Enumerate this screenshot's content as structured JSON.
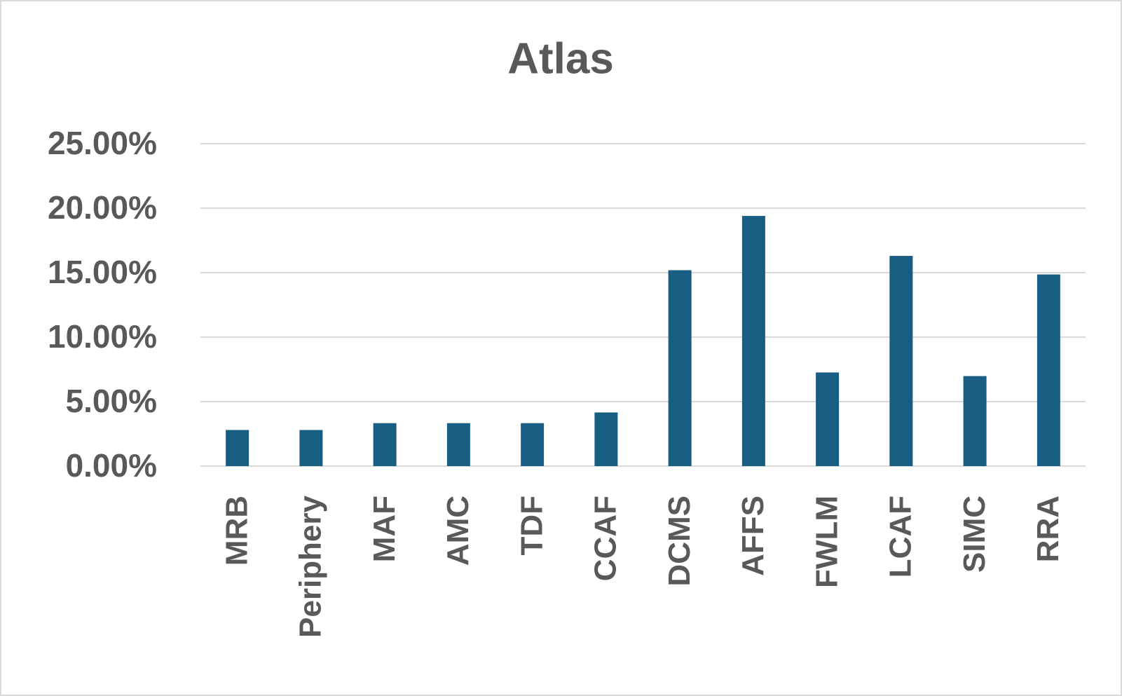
{
  "chart_data": {
    "type": "bar",
    "title": "Atlas",
    "categories": [
      "MRB",
      "Periphery",
      "MAF",
      "AMC",
      "TDF",
      "CCAF",
      "DCMS",
      "AFFS",
      "FWLM",
      "LCAF",
      "SIMC",
      "RRA"
    ],
    "values": [
      2.8,
      2.8,
      3.33,
      3.33,
      3.33,
      4.16,
      15.19,
      19.4,
      7.26,
      16.3,
      6.98,
      14.86
    ],
    "color": "#175e82",
    "ylim": [
      0,
      25
    ],
    "yticks": [
      {
        "value": 0,
        "label": "0.00%"
      },
      {
        "value": 5,
        "label": "5.00%"
      },
      {
        "value": 10,
        "label": "10.00%"
      },
      {
        "value": 15,
        "label": "15.00%"
      },
      {
        "value": 20,
        "label": "20.00%"
      },
      {
        "value": 25,
        "label": "25.00%"
      }
    ],
    "grid": true
  }
}
